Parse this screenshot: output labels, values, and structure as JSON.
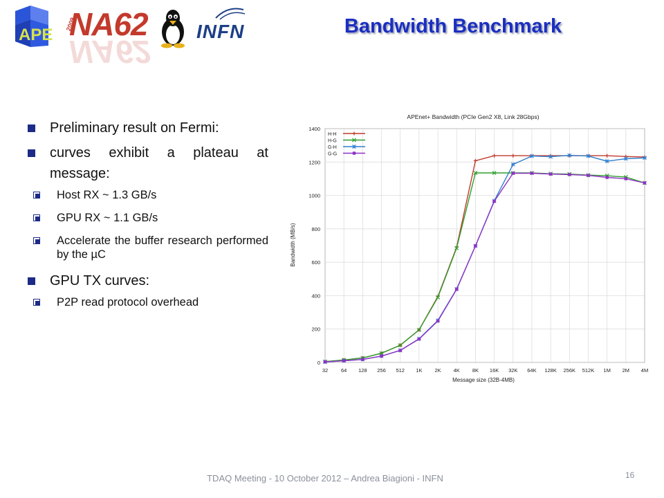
{
  "header": {
    "logos": [
      "APE",
      "NA62",
      "tux",
      "INFN"
    ],
    "ape_logo_text": "APE",
    "na62_logo_text": "NA62",
    "na62_badge_text": "2009",
    "infn_logo_text": "INFN",
    "title": "Bandwidth Benchmark"
  },
  "bullets": [
    {
      "text": "Preliminary result on Fermi:",
      "children": []
    },
    {
      "text": "curves exhibit a plateau at message:",
      "children": [
        "Host RX ~ 1.3 GB/s",
        "GPU RX ~ 1.1 GB/s",
        "Accelerate the buffer research performed by the µC"
      ]
    },
    {
      "text": "GPU TX curves:",
      "children": [
        "P2P read protocol overhead"
      ]
    }
  ],
  "colors": {
    "title": "#1b2ec0",
    "bullet_marker": "#1c2a88",
    "series_H_H": "#c0392b",
    "series_H_G": "#2e9e2e",
    "series_G_H": "#2f7fd0",
    "series_G_G": "#8e32c4"
  },
  "chart_data": {
    "type": "line",
    "title": "APEnet+ Bandwidth (PCIe Gen2 X8, Link 28Gbps)",
    "xlabel": "Message size (32B-4MB)",
    "ylabel": "Bandwidth (MB/s)",
    "ylim": [
      0,
      1400
    ],
    "yticks": [
      0,
      200,
      400,
      600,
      800,
      1000,
      1200,
      1400
    ],
    "grid": true,
    "legend_position": "top-left",
    "categories": [
      "32",
      "64",
      "128",
      "256",
      "512",
      "1K",
      "2K",
      "4K",
      "8K",
      "16K",
      "32K",
      "64K",
      "128K",
      "256K",
      "512K",
      "1M",
      "2M",
      "4M"
    ],
    "series": [
      {
        "name": "H-H",
        "color": "#c0392b",
        "marker": "plus",
        "values": [
          5,
          15,
          27,
          55,
          103,
          195,
          395,
          690,
          1208,
          1238,
          1238,
          1238,
          1238,
          1238,
          1238,
          1238,
          1233,
          1230
        ]
      },
      {
        "name": "H-G",
        "color": "#2e9e2e",
        "marker": "x",
        "values": [
          5,
          15,
          27,
          55,
          103,
          195,
          390,
          685,
          1135,
          1135,
          1135,
          1135,
          1130,
          1128,
          1122,
          1118,
          1110,
          1075
        ]
      },
      {
        "name": "G-H",
        "color": "#2f7fd0",
        "marker": "star",
        "values": [
          3,
          10,
          18,
          38,
          72,
          142,
          252,
          440,
          698,
          968,
          1186,
          1236,
          1232,
          1240,
          1236,
          1205,
          1220,
          1225
        ]
      },
      {
        "name": "G-G",
        "color": "#8e32c4",
        "marker": "square",
        "values": [
          3,
          10,
          18,
          38,
          72,
          140,
          248,
          438,
          698,
          965,
          1133,
          1133,
          1128,
          1125,
          1120,
          1108,
          1100,
          1075
        ]
      }
    ]
  },
  "footer": {
    "text": "TDAQ Meeting - 10 October 2012 – Andrea Biagioni - INFN",
    "page_number": "16"
  }
}
